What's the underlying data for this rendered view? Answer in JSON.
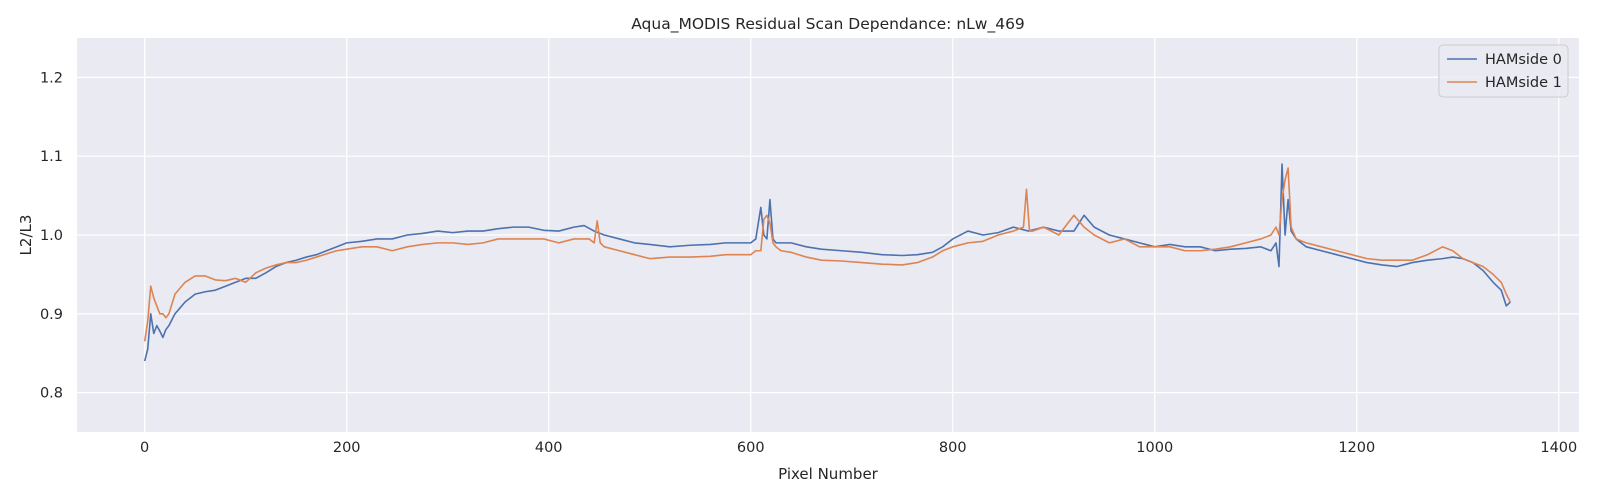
{
  "chart_data": {
    "type": "line",
    "title": "Aqua_MODIS Residual Scan Dependance: nLw_469",
    "xlabel": "Pixel Number",
    "ylabel": "L2/L3",
    "xlim": [
      -67,
      1420
    ],
    "ylim": [
      0.75,
      1.25
    ],
    "x_ticks": [
      0,
      200,
      400,
      600,
      800,
      1000,
      1200,
      1400
    ],
    "y_ticks": [
      0.8,
      0.9,
      1.0,
      1.1,
      1.2
    ],
    "x_tick_labels": [
      "0",
      "200",
      "400",
      "600",
      "800",
      "1000",
      "1200",
      "1400"
    ],
    "y_tick_labels": [
      "0.8",
      "0.9",
      "1.0",
      "1.1",
      "1.2"
    ],
    "grid": true,
    "legend_position": "top-right",
    "background_color": "#eaeaf2",
    "series": [
      {
        "name": "HAMside 0",
        "color": "#4c72b0",
        "x": [
          0,
          3,
          6,
          9,
          12,
          15,
          18,
          21,
          24,
          30,
          40,
          50,
          60,
          70,
          80,
          90,
          100,
          110,
          120,
          130,
          140,
          150,
          160,
          170,
          180,
          190,
          200,
          215,
          230,
          245,
          260,
          275,
          290,
          305,
          320,
          335,
          350,
          365,
          380,
          395,
          410,
          425,
          435,
          445,
          455,
          470,
          485,
          500,
          520,
          540,
          560,
          575,
          590,
          600,
          605,
          610,
          613,
          616,
          619,
          622,
          625,
          630,
          640,
          655,
          670,
          690,
          710,
          730,
          750,
          765,
          780,
          790,
          800,
          815,
          830,
          845,
          860,
          875,
          890,
          905,
          920,
          930,
          940,
          955,
          970,
          985,
          1000,
          1015,
          1030,
          1045,
          1060,
          1075,
          1090,
          1105,
          1115,
          1120,
          1123,
          1126,
          1129,
          1132,
          1135,
          1140,
          1150,
          1165,
          1180,
          1195,
          1210,
          1225,
          1240,
          1255,
          1270,
          1285,
          1295,
          1305,
          1315,
          1325,
          1335,
          1343,
          1348,
          1352
        ],
        "y": [
          0.84,
          0.855,
          0.9,
          0.875,
          0.885,
          0.878,
          0.87,
          0.88,
          0.885,
          0.9,
          0.915,
          0.925,
          0.928,
          0.93,
          0.935,
          0.94,
          0.945,
          0.945,
          0.952,
          0.96,
          0.965,
          0.968,
          0.972,
          0.975,
          0.98,
          0.985,
          0.99,
          0.992,
          0.995,
          0.995,
          1.0,
          1.002,
          1.005,
          1.003,
          1.005,
          1.005,
          1.008,
          1.01,
          1.01,
          1.006,
          1.005,
          1.01,
          1.012,
          1.005,
          1.0,
          0.995,
          0.99,
          0.988,
          0.985,
          0.987,
          0.988,
          0.99,
          0.99,
          0.99,
          0.995,
          1.035,
          1.0,
          0.995,
          1.045,
          0.995,
          0.99,
          0.99,
          0.99,
          0.985,
          0.982,
          0.98,
          0.978,
          0.975,
          0.974,
          0.975,
          0.978,
          0.985,
          0.995,
          1.005,
          1.0,
          1.003,
          1.01,
          1.005,
          1.01,
          1.005,
          1.005,
          1.025,
          1.01,
          1.0,
          0.995,
          0.99,
          0.985,
          0.988,
          0.985,
          0.985,
          0.98,
          0.982,
          0.983,
          0.985,
          0.98,
          0.99,
          0.96,
          1.09,
          1.0,
          1.045,
          1.005,
          0.995,
          0.985,
          0.98,
          0.975,
          0.97,
          0.965,
          0.962,
          0.96,
          0.965,
          0.968,
          0.97,
          0.972,
          0.97,
          0.965,
          0.955,
          0.94,
          0.93,
          0.91,
          0.915
        ]
      },
      {
        "name": "HAMside 1",
        "color": "#dd8452",
        "x": [
          0,
          3,
          6,
          9,
          12,
          15,
          18,
          21,
          24,
          30,
          40,
          50,
          60,
          70,
          80,
          90,
          100,
          110,
          120,
          130,
          140,
          150,
          160,
          170,
          180,
          190,
          200,
          215,
          230,
          245,
          260,
          275,
          290,
          305,
          320,
          335,
          350,
          365,
          380,
          395,
          410,
          425,
          440,
          445,
          448,
          451,
          455,
          470,
          485,
          500,
          520,
          540,
          560,
          575,
          590,
          600,
          605,
          610,
          613,
          616,
          619,
          622,
          625,
          630,
          640,
          655,
          670,
          690,
          710,
          730,
          750,
          765,
          780,
          790,
          800,
          815,
          830,
          845,
          860,
          870,
          873,
          876,
          879,
          890,
          905,
          920,
          930,
          940,
          955,
          970,
          985,
          1000,
          1015,
          1030,
          1045,
          1060,
          1075,
          1090,
          1105,
          1115,
          1120,
          1123,
          1126,
          1129,
          1132,
          1135,
          1140,
          1150,
          1165,
          1180,
          1195,
          1210,
          1225,
          1240,
          1255,
          1270,
          1285,
          1295,
          1305,
          1315,
          1325,
          1335,
          1343,
          1348,
          1352
        ],
        "y": [
          0.865,
          0.89,
          0.935,
          0.92,
          0.91,
          0.9,
          0.9,
          0.895,
          0.9,
          0.925,
          0.94,
          0.948,
          0.948,
          0.943,
          0.942,
          0.945,
          0.94,
          0.952,
          0.958,
          0.962,
          0.965,
          0.965,
          0.968,
          0.972,
          0.976,
          0.98,
          0.982,
          0.985,
          0.985,
          0.98,
          0.985,
          0.988,
          0.99,
          0.99,
          0.988,
          0.99,
          0.995,
          0.995,
          0.995,
          0.995,
          0.99,
          0.995,
          0.995,
          0.99,
          1.018,
          0.99,
          0.985,
          0.98,
          0.975,
          0.97,
          0.972,
          0.972,
          0.973,
          0.975,
          0.975,
          0.975,
          0.98,
          0.98,
          1.02,
          1.025,
          1.015,
          0.99,
          0.985,
          0.98,
          0.978,
          0.972,
          0.968,
          0.967,
          0.965,
          0.963,
          0.962,
          0.965,
          0.972,
          0.98,
          0.985,
          0.99,
          0.992,
          1.0,
          1.005,
          1.01,
          1.058,
          1.005,
          1.005,
          1.01,
          1.0,
          1.025,
          1.01,
          1.0,
          0.99,
          0.995,
          0.985,
          0.985,
          0.985,
          0.98,
          0.98,
          0.982,
          0.985,
          0.99,
          0.995,
          1.0,
          1.01,
          1.0,
          1.045,
          1.07,
          1.085,
          1.01,
          0.995,
          0.99,
          0.985,
          0.98,
          0.975,
          0.97,
          0.968,
          0.968,
          0.968,
          0.975,
          0.985,
          0.98,
          0.97,
          0.965,
          0.96,
          0.95,
          0.94,
          0.925,
          0.915
        ]
      }
    ]
  }
}
